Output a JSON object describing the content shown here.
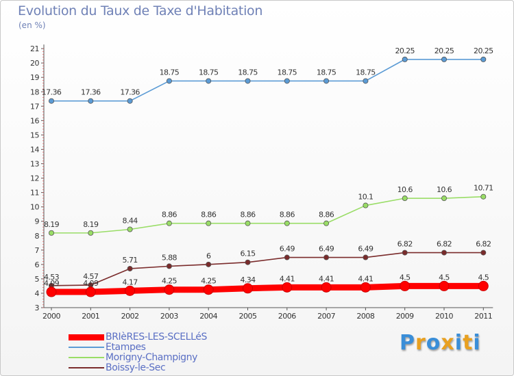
{
  "header": {
    "title": "Evolution du Taux de Taxe d'Habitation",
    "subtitle": "(en %)"
  },
  "chart_data": {
    "type": "line",
    "title": "Evolution du Taux de Taxe d'Habitation",
    "ylabel": "(en %)",
    "x": [
      "2000",
      "2001",
      "2002",
      "2003",
      "2004",
      "2005",
      "2006",
      "2007",
      "2008",
      "2009",
      "2010",
      "2011"
    ],
    "ylim": [
      3,
      21
    ],
    "yticks": [
      3,
      4,
      5,
      6,
      7,
      8,
      9,
      10,
      11,
      12,
      13,
      14,
      15,
      16,
      17,
      18,
      19,
      20,
      21
    ],
    "grid": false,
    "legend_position": "bottom-left",
    "series": [
      {
        "name": "BRIèRES-LES-SCELLéS",
        "color": "#ff0000",
        "labels": [
          "4.09",
          "4.09",
          "4.17",
          "4.25",
          "4.25",
          "4.34",
          "4.41",
          "4.41",
          "4.41",
          "4.5",
          "4.5",
          "4.5"
        ],
        "values": [
          4.09,
          4.09,
          4.17,
          4.25,
          4.25,
          4.34,
          4.41,
          4.41,
          4.41,
          4.5,
          4.5,
          4.5
        ]
      },
      {
        "name": "Etampes",
        "color": "#5b9bd5",
        "labels": [
          "17.36",
          "17.36",
          "17.36",
          "18.75",
          "18.75",
          "18.75",
          "18.75",
          "18.75",
          "18.75",
          "20.25",
          "20.25",
          "20.25"
        ],
        "values": [
          17.36,
          17.36,
          17.36,
          18.75,
          18.75,
          18.75,
          18.75,
          18.75,
          18.75,
          20.25,
          20.25,
          20.25
        ]
      },
      {
        "name": "Morigny-Champigny",
        "color": "#99dd66",
        "labels": [
          "8.19",
          "8.19",
          "8.44",
          "8.86",
          "8.86",
          "8.86",
          "8.86",
          "8.86",
          "10.1",
          "10.6",
          "10.6",
          "10.71"
        ],
        "values": [
          8.19,
          8.19,
          8.44,
          8.86,
          8.86,
          8.86,
          8.86,
          8.86,
          10.1,
          10.6,
          10.6,
          10.71
        ]
      },
      {
        "name": "Boissy-le-Sec",
        "color": "#7a2b2b",
        "labels": [
          "4.53",
          "4.57",
          "5.71",
          "5.88",
          "6",
          "6.15",
          "6.49",
          "6.49",
          "6.49",
          "6.82",
          "6.82",
          "6.82"
        ],
        "values": [
          4.53,
          4.57,
          5.71,
          5.88,
          6,
          6.15,
          6.49,
          6.49,
          6.49,
          6.82,
          6.82,
          6.82
        ]
      }
    ]
  },
  "legend": {
    "items": [
      {
        "label": "BRIèRES-LES-SCELLéS",
        "color": "#ff0000"
      },
      {
        "label": "Etampes",
        "color": "#5b9bd5"
      },
      {
        "label": "Morigny-Champigny",
        "color": "#99dd66"
      },
      {
        "label": "Boissy-le-Sec",
        "color": "#7a2b2b"
      }
    ]
  },
  "logo": {
    "letters": [
      {
        "char": "P",
        "color": "#3a8ed8"
      },
      {
        "char": "r",
        "color": "#e8a020"
      },
      {
        "char": "o",
        "color": "#3a8ed8"
      },
      {
        "char": "x",
        "color": "#e8a020"
      },
      {
        "char": "i",
        "color": "#3a8ed8"
      },
      {
        "char": "t",
        "color": "#e8a020"
      },
      {
        "char": "i",
        "color": "#3a8ed8"
      }
    ]
  }
}
